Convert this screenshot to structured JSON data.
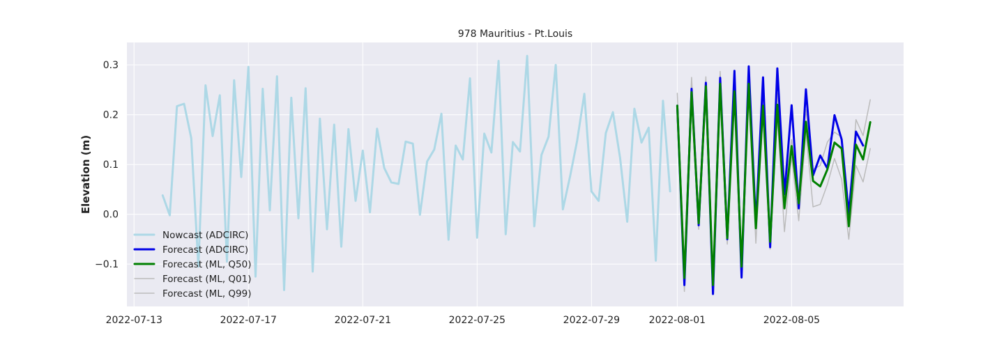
{
  "chart_data": {
    "type": "line",
    "title": "978 Mauritius - Pt.Louis",
    "xlabel": "",
    "ylabel": "Elevation (m)",
    "x_type": "date",
    "xlim": [
      "2022-07-12T18:00",
      "2022-08-08T22:00"
    ],
    "ylim": [
      -0.185,
      0.345
    ],
    "y_ticks": [
      -0.1,
      0.0,
      0.1,
      0.2,
      0.3
    ],
    "y_tick_labels": [
      "−0.1",
      "0.0",
      "0.1",
      "0.2",
      "0.3"
    ],
    "x_ticks": [
      "2022-07-13",
      "2022-07-17",
      "2022-07-21",
      "2022-07-25",
      "2022-07-29",
      "2022-08-01",
      "2022-08-05"
    ],
    "x_tick_labels": [
      "2022-07-13",
      "2022-07-17",
      "2022-07-21",
      "2022-07-25",
      "2022-07-29",
      "2022-08-01",
      "2022-08-05"
    ],
    "grid": true,
    "legend_position": "lower-left",
    "series": [
      {
        "name": "Nowcast (ADCIRC)",
        "color": "#add8e6",
        "width": 3,
        "points": [
          [
            "2022-07-14T00:00",
            0.038
          ],
          [
            "2022-07-14T06:00",
            -0.002
          ],
          [
            "2022-07-14T12:00",
            0.217
          ],
          [
            "2022-07-14T18:00",
            0.222
          ],
          [
            "2022-07-15T00:00",
            0.153
          ],
          [
            "2022-07-15T06:00",
            -0.105
          ],
          [
            "2022-07-15T12:00",
            0.259
          ],
          [
            "2022-07-15T18:00",
            0.157
          ],
          [
            "2022-07-16T00:00",
            0.239
          ],
          [
            "2022-07-16T06:00",
            -0.095
          ],
          [
            "2022-07-16T12:00",
            0.269
          ],
          [
            "2022-07-16T18:00",
            0.075
          ],
          [
            "2022-07-17T00:00",
            0.296
          ],
          [
            "2022-07-17T06:00",
            -0.125
          ],
          [
            "2022-07-17T12:00",
            0.252
          ],
          [
            "2022-07-17T18:00",
            0.008
          ],
          [
            "2022-07-18T00:00",
            0.277
          ],
          [
            "2022-07-18T06:00",
            -0.152
          ],
          [
            "2022-07-18T12:00",
            0.234
          ],
          [
            "2022-07-18T18:00",
            -0.008
          ],
          [
            "2022-07-19T00:00",
            0.253
          ],
          [
            "2022-07-19T06:00",
            -0.115
          ],
          [
            "2022-07-19T12:00",
            0.192
          ],
          [
            "2022-07-19T18:00",
            -0.03
          ],
          [
            "2022-07-20T00:00",
            0.18
          ],
          [
            "2022-07-20T06:00",
            -0.065
          ],
          [
            "2022-07-20T12:00",
            0.171
          ],
          [
            "2022-07-20T18:00",
            0.027
          ],
          [
            "2022-07-21T00:00",
            0.128
          ],
          [
            "2022-07-21T06:00",
            0.004
          ],
          [
            "2022-07-21T12:00",
            0.172
          ],
          [
            "2022-07-21T18:00",
            0.093
          ],
          [
            "2022-07-22T00:00",
            0.064
          ],
          [
            "2022-07-22T06:00",
            0.061
          ],
          [
            "2022-07-22T12:00",
            0.146
          ],
          [
            "2022-07-22T18:00",
            0.142
          ],
          [
            "2022-07-23T00:00",
            -0.001
          ],
          [
            "2022-07-23T06:00",
            0.106
          ],
          [
            "2022-07-23T12:00",
            0.13
          ],
          [
            "2022-07-23T18:00",
            0.202
          ],
          [
            "2022-07-24T00:00",
            -0.051
          ],
          [
            "2022-07-24T06:00",
            0.138
          ],
          [
            "2022-07-24T12:00",
            0.11
          ],
          [
            "2022-07-24T18:00",
            0.273
          ],
          [
            "2022-07-25T00:00",
            -0.047
          ],
          [
            "2022-07-25T06:00",
            0.162
          ],
          [
            "2022-07-25T12:00",
            0.124
          ],
          [
            "2022-07-25T18:00",
            0.308
          ],
          [
            "2022-07-26T00:00",
            -0.04
          ],
          [
            "2022-07-26T06:00",
            0.145
          ],
          [
            "2022-07-26T12:00",
            0.126
          ],
          [
            "2022-07-26T18:00",
            0.318
          ],
          [
            "2022-07-27T00:00",
            -0.024
          ],
          [
            "2022-07-27T06:00",
            0.119
          ],
          [
            "2022-07-27T12:00",
            0.156
          ],
          [
            "2022-07-27T18:00",
            0.3
          ],
          [
            "2022-07-28T00:00",
            0.01
          ],
          [
            "2022-07-28T06:00",
            0.076
          ],
          [
            "2022-07-28T12:00",
            0.148
          ],
          [
            "2022-07-28T18:00",
            0.242
          ],
          [
            "2022-07-29T00:00",
            0.046
          ],
          [
            "2022-07-29T06:00",
            0.027
          ],
          [
            "2022-07-29T12:00",
            0.163
          ],
          [
            "2022-07-29T18:00",
            0.205
          ],
          [
            "2022-07-30T00:00",
            0.113
          ],
          [
            "2022-07-30T06:00",
            -0.015
          ],
          [
            "2022-07-30T12:00",
            0.212
          ],
          [
            "2022-07-30T18:00",
            0.144
          ],
          [
            "2022-07-31T00:00",
            0.174
          ],
          [
            "2022-07-31T06:00",
            -0.093
          ],
          [
            "2022-07-31T12:00",
            0.228
          ],
          [
            "2022-07-31T18:00",
            0.046
          ]
        ]
      },
      {
        "name": "Forecast (ADCIRC)",
        "color": "#0000e6",
        "width": 3,
        "points": [
          [
            "2022-08-01T00:00",
            0.218
          ],
          [
            "2022-08-01T06:00",
            -0.142
          ],
          [
            "2022-08-01T12:00",
            0.252
          ],
          [
            "2022-08-01T18:00",
            -0.022
          ],
          [
            "2022-08-02T00:00",
            0.264
          ],
          [
            "2022-08-02T06:00",
            -0.16
          ],
          [
            "2022-08-02T12:00",
            0.274
          ],
          [
            "2022-08-02T18:00",
            -0.05
          ],
          [
            "2022-08-03T00:00",
            0.288
          ],
          [
            "2022-08-03T06:00",
            -0.127
          ],
          [
            "2022-08-03T12:00",
            0.297
          ],
          [
            "2022-08-03T18:00",
            -0.02
          ],
          [
            "2022-08-04T00:00",
            0.275
          ],
          [
            "2022-08-04T06:00",
            -0.066
          ],
          [
            "2022-08-04T12:00",
            0.293
          ],
          [
            "2022-08-04T18:00",
            0.04
          ],
          [
            "2022-08-05T00:00",
            0.219
          ],
          [
            "2022-08-05T06:00",
            0.012
          ],
          [
            "2022-08-05T12:00",
            0.251
          ],
          [
            "2022-08-05T18:00",
            0.078
          ],
          [
            "2022-08-06T00:00",
            0.118
          ],
          [
            "2022-08-06T06:00",
            0.092
          ],
          [
            "2022-08-06T12:00",
            0.199
          ],
          [
            "2022-08-06T18:00",
            0.15
          ],
          [
            "2022-08-07T00:00",
            0.001
          ],
          [
            "2022-08-07T06:00",
            0.166
          ],
          [
            "2022-08-07T12:00",
            0.138
          ]
        ]
      },
      {
        "name": "Forecast (ML, Q50)",
        "color": "#008000",
        "width": 3,
        "points": [
          [
            "2022-08-01T00:00",
            0.218
          ],
          [
            "2022-08-01T06:00",
            -0.128
          ],
          [
            "2022-08-01T12:00",
            0.245
          ],
          [
            "2022-08-01T18:00",
            -0.018
          ],
          [
            "2022-08-02T00:00",
            0.257
          ],
          [
            "2022-08-02T06:00",
            -0.142
          ],
          [
            "2022-08-02T12:00",
            0.262
          ],
          [
            "2022-08-02T18:00",
            -0.048
          ],
          [
            "2022-08-03T00:00",
            0.247
          ],
          [
            "2022-08-03T06:00",
            -0.105
          ],
          [
            "2022-08-03T12:00",
            0.262
          ],
          [
            "2022-08-03T18:00",
            -0.028
          ],
          [
            "2022-08-04T00:00",
            0.218
          ],
          [
            "2022-08-04T06:00",
            -0.055
          ],
          [
            "2022-08-04T12:00",
            0.22
          ],
          [
            "2022-08-04T18:00",
            0.012
          ],
          [
            "2022-08-05T00:00",
            0.137
          ],
          [
            "2022-08-05T06:00",
            0.022
          ],
          [
            "2022-08-05T12:00",
            0.186
          ],
          [
            "2022-08-05T18:00",
            0.067
          ],
          [
            "2022-08-06T00:00",
            0.056
          ],
          [
            "2022-08-06T06:00",
            0.09
          ],
          [
            "2022-08-06T12:00",
            0.144
          ],
          [
            "2022-08-06T18:00",
            0.132
          ],
          [
            "2022-08-07T00:00",
            -0.024
          ],
          [
            "2022-08-07T06:00",
            0.14
          ],
          [
            "2022-08-07T12:00",
            0.11
          ],
          [
            "2022-08-07T18:00",
            0.185
          ]
        ]
      },
      {
        "name": "Forecast (ML, Q01)",
        "color": "#bbbbbb",
        "width": 1.5,
        "points": [
          [
            "2022-08-01T00:00",
            0.205
          ],
          [
            "2022-08-01T06:00",
            -0.155
          ],
          [
            "2022-08-01T12:00",
            0.23
          ],
          [
            "2022-08-01T18:00",
            -0.03
          ],
          [
            "2022-08-02T00:00",
            0.24
          ],
          [
            "2022-08-02T06:00",
            -0.155
          ],
          [
            "2022-08-02T12:00",
            0.245
          ],
          [
            "2022-08-02T18:00",
            -0.06
          ],
          [
            "2022-08-03T00:00",
            0.23
          ],
          [
            "2022-08-03T06:00",
            -0.115
          ],
          [
            "2022-08-03T12:00",
            0.24
          ],
          [
            "2022-08-03T18:00",
            -0.058
          ],
          [
            "2022-08-04T00:00",
            0.2
          ],
          [
            "2022-08-04T06:00",
            -0.07
          ],
          [
            "2022-08-04T12:00",
            0.195
          ],
          [
            "2022-08-04T18:00",
            -0.035
          ],
          [
            "2022-08-05T00:00",
            0.115
          ],
          [
            "2022-08-05T06:00",
            -0.013
          ],
          [
            "2022-08-05T12:00",
            0.165
          ],
          [
            "2022-08-05T18:00",
            0.015
          ],
          [
            "2022-08-06T00:00",
            0.02
          ],
          [
            "2022-08-06T06:00",
            0.06
          ],
          [
            "2022-08-06T12:00",
            0.112
          ],
          [
            "2022-08-06T18:00",
            0.07
          ],
          [
            "2022-08-07T00:00",
            -0.05
          ],
          [
            "2022-08-07T06:00",
            0.098
          ],
          [
            "2022-08-07T12:00",
            0.065
          ],
          [
            "2022-08-07T18:00",
            0.132
          ]
        ]
      },
      {
        "name": "Forecast (ML, Q99)",
        "color": "#bbbbbb",
        "width": 1.5,
        "points": [
          [
            "2022-08-01T00:00",
            0.243
          ],
          [
            "2022-08-01T06:00",
            -0.105
          ],
          [
            "2022-08-01T12:00",
            0.275
          ],
          [
            "2022-08-01T18:00",
            0.005
          ],
          [
            "2022-08-02T00:00",
            0.276
          ],
          [
            "2022-08-02T06:00",
            -0.118
          ],
          [
            "2022-08-02T12:00",
            0.287
          ],
          [
            "2022-08-02T18:00",
            -0.025
          ],
          [
            "2022-08-03T00:00",
            0.262
          ],
          [
            "2022-08-03T06:00",
            -0.088
          ],
          [
            "2022-08-03T12:00",
            0.28
          ],
          [
            "2022-08-03T18:00",
            -0.003
          ],
          [
            "2022-08-04T00:00",
            0.24
          ],
          [
            "2022-08-04T06:00",
            -0.04
          ],
          [
            "2022-08-04T12:00",
            0.243
          ],
          [
            "2022-08-04T18:00",
            0.04
          ],
          [
            "2022-08-05T00:00",
            0.15
          ],
          [
            "2022-08-05T06:00",
            0.045
          ],
          [
            "2022-08-05T12:00",
            0.21
          ],
          [
            "2022-08-05T18:00",
            0.09
          ],
          [
            "2022-08-06T00:00",
            0.098
          ],
          [
            "2022-08-06T06:00",
            0.145
          ],
          [
            "2022-08-06T12:00",
            0.165
          ],
          [
            "2022-08-06T18:00",
            0.155
          ],
          [
            "2022-08-07T00:00",
            0.002
          ],
          [
            "2022-08-07T06:00",
            0.19
          ],
          [
            "2022-08-07T12:00",
            0.158
          ],
          [
            "2022-08-07T18:00",
            0.23
          ]
        ]
      }
    ],
    "legend": [
      {
        "label": "Nowcast (ADCIRC)",
        "color": "#add8e6",
        "width": 3
      },
      {
        "label": "Forecast (ADCIRC)",
        "color": "#0000e6",
        "width": 3
      },
      {
        "label": "Forecast (ML, Q50)",
        "color": "#008000",
        "width": 3
      },
      {
        "label": "Forecast (ML, Q01)",
        "color": "#bbbbbb",
        "width": 1.5
      },
      {
        "label": "Forecast (ML, Q99)",
        "color": "#bbbbbb",
        "width": 1.5
      }
    ],
    "colors": {
      "plot_background": "#eaeaf2",
      "grid": "#ffffff"
    }
  }
}
